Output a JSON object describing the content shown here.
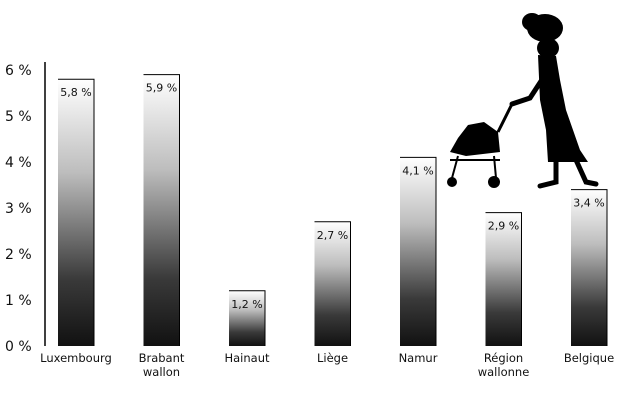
{
  "chart_data": {
    "type": "bar",
    "title": "",
    "xlabel": "",
    "ylabel": "",
    "ylim": [
      0,
      6
    ],
    "yticks": [
      "0 %",
      "1 %",
      "2 %",
      "3 %",
      "4 %",
      "5 %",
      "6 %"
    ],
    "grid": false,
    "legend": "none",
    "categories": [
      [
        "Luxembourg"
      ],
      [
        "Brabant",
        "wallon"
      ],
      [
        "Hainaut"
      ],
      [
        "Liège"
      ],
      [
        "Namur"
      ],
      [
        "Région",
        "wallonne"
      ],
      [
        "Belgique"
      ]
    ],
    "values": [
      5.8,
      5.9,
      1.2,
      2.7,
      4.1,
      2.9,
      3.4
    ],
    "value_labels": [
      "5,8 %",
      "5,9 %",
      "1,2 %",
      "2,7 %",
      "4,1 %",
      "2,9 %",
      "3,4 %"
    ],
    "colors": {
      "bar": "#111111",
      "outline": "#000000",
      "background": "#ffffff"
    },
    "decoration": "silhouette-woman-pushing-stroller-icon"
  }
}
